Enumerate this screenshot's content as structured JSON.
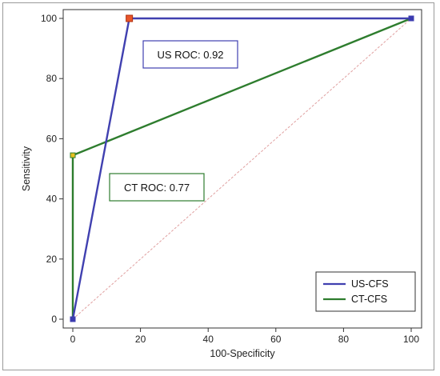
{
  "chart_data": {
    "type": "line",
    "xlabel": "100-Specificity",
    "ylabel": "Sensitivity",
    "xlim": [
      0,
      100
    ],
    "ylim": [
      0,
      100
    ],
    "x_ticks": [
      "0",
      "20",
      "40",
      "60",
      "80",
      "100"
    ],
    "y_ticks": [
      "0",
      "20",
      "40",
      "60",
      "80",
      "100"
    ],
    "grid": false,
    "legend": "bottom-right",
    "series": [
      {
        "name": "US-CFS",
        "color": "#4040b0",
        "x": [
          0,
          16.7,
          100
        ],
        "y": [
          0,
          100,
          100
        ]
      },
      {
        "name": "CT-CFS",
        "color": "#2e7d2e",
        "x": [
          0,
          0,
          100
        ],
        "y": [
          0,
          54.5,
          100
        ]
      }
    ],
    "reference_line": {
      "color": "#e0a0a0",
      "x": [
        0,
        100
      ],
      "y": [
        0,
        100
      ]
    },
    "annotations": [
      {
        "text": "US ROC: 0.92",
        "border_color": "#4040b0"
      },
      {
        "text": "CT ROC: 0.77",
        "border_color": "#2e7d2e"
      }
    ]
  }
}
